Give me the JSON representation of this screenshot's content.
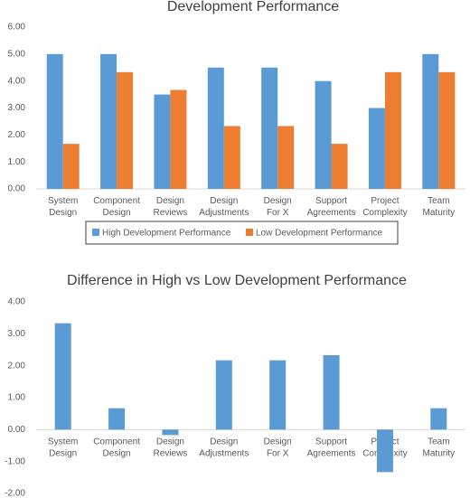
{
  "chart_data": [
    {
      "type": "bar",
      "title": "Development Performance",
      "categories": [
        "System\nDesign",
        "Component\nDesign",
        "Design\nReviews",
        "Design\nAdjustments",
        "Design\nFor X",
        "Support\nAgreements",
        "Project\nComplexity",
        "Team\nMaturity"
      ],
      "series": [
        {
          "name": "High Development Performance",
          "color": "#5b9bd5",
          "values": [
            5,
            5,
            3.5,
            4.5,
            4.5,
            4,
            3,
            5
          ]
        },
        {
          "name": "Low Development Performance",
          "color": "#ed7d31",
          "values": [
            1.67,
            4.33,
            3.67,
            2.33,
            2.33,
            1.67,
            4.33,
            4.33
          ]
        }
      ],
      "ylim": [
        0,
        6
      ],
      "yticks": [
        {
          "value": 0,
          "label": "0.00"
        },
        {
          "value": 1,
          "label": "1.00"
        },
        {
          "value": 2,
          "label": "2.00"
        },
        {
          "value": 3,
          "label": "3.00"
        },
        {
          "value": 4,
          "label": "4.00"
        },
        {
          "value": 5,
          "label": "5.00"
        },
        {
          "value": 6,
          "label": "6.00"
        }
      ],
      "legend": "bottom"
    },
    {
      "type": "bar",
      "title": "Difference in High vs Low Development Performance",
      "categories": [
        "System\nDesign",
        "Component\nDesign",
        "Design\nReviews",
        "Design\nAdjustments",
        "Design\nFor X",
        "Support\nAgreements",
        "Project\nComplexity",
        "Team\nMaturity"
      ],
      "values": [
        3.33,
        0.67,
        -0.17,
        2.17,
        2.17,
        2.33,
        -1.33,
        0.67
      ],
      "color": "#5b9bd5",
      "ylim": [
        -2,
        4
      ],
      "yticks": [
        {
          "value": -2,
          "label": "-2.00"
        },
        {
          "value": -1,
          "label": "-1.00"
        },
        {
          "value": 0,
          "label": "0.00"
        },
        {
          "value": 1,
          "label": "1.00"
        },
        {
          "value": 2,
          "label": "2.00"
        },
        {
          "value": 3,
          "label": "3.00"
        },
        {
          "value": 4,
          "label": "4.00"
        }
      ]
    }
  ]
}
